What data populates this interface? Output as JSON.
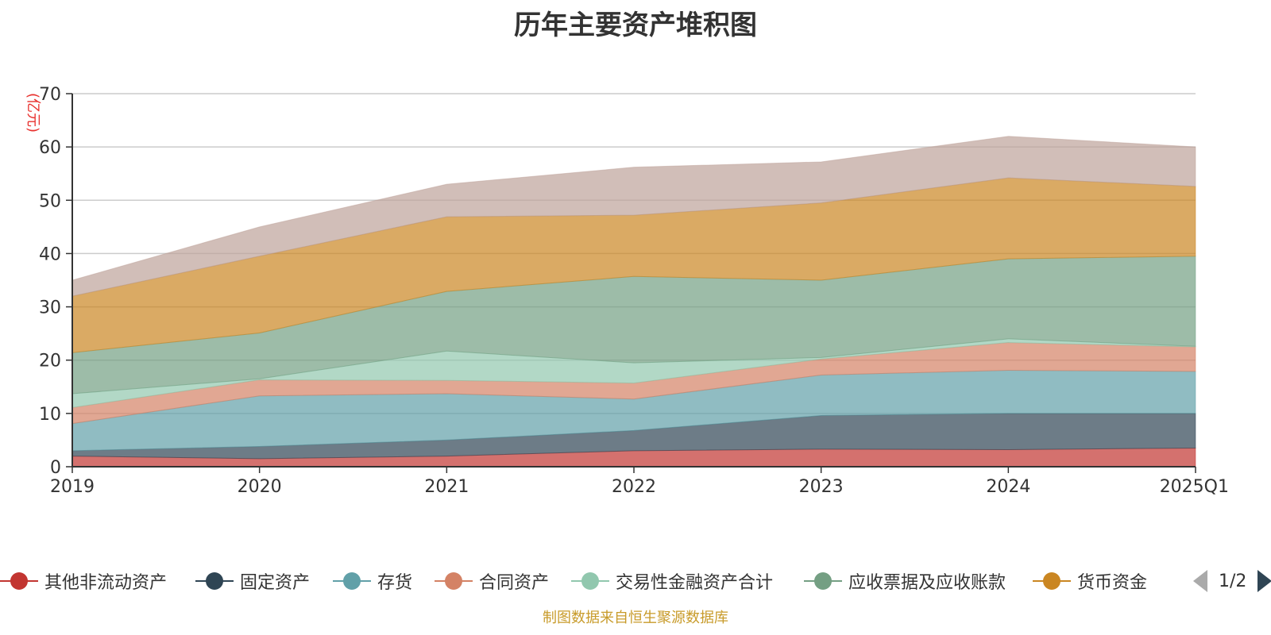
{
  "chart_data": {
    "type": "area",
    "stacked": true,
    "title": "历年主要资产堆积图",
    "ylabel": "(亿元)",
    "x": [
      "2019",
      "2020",
      "2021",
      "2022",
      "2023",
      "2024",
      "2025Q1"
    ],
    "ylim": [
      0,
      70
    ],
    "yticks": [
      0,
      10,
      20,
      30,
      40,
      50,
      60,
      70
    ],
    "grid": true,
    "legend_position": "bottom",
    "series": [
      {
        "name": "其他非流动资产",
        "color": "#c23531",
        "values": [
          2.0,
          1.5,
          2.0,
          3.0,
          3.3,
          3.2,
          3.5
        ]
      },
      {
        "name": "固定资产",
        "color": "#2f4554",
        "values": [
          1.0,
          2.3,
          3.0,
          3.8,
          6.3,
          6.8,
          6.5
        ]
      },
      {
        "name": "存货",
        "color": "#61a0a8",
        "values": [
          5.1,
          9.5,
          8.7,
          5.9,
          7.6,
          8.1,
          7.9
        ]
      },
      {
        "name": "合同资产",
        "color": "#d48265",
        "values": [
          3.0,
          3.0,
          2.5,
          3.0,
          3.0,
          5.2,
          4.6
        ]
      },
      {
        "name": "交易性金融资产合计",
        "color": "#91c7ae",
        "values": [
          2.6,
          0.2,
          5.5,
          3.8,
          0.3,
          0.7,
          0.1
        ]
      },
      {
        "name": "应收票据及应收账款",
        "color": "#749f83",
        "values": [
          7.7,
          8.6,
          11.2,
          16.2,
          14.5,
          15.0,
          16.9
        ]
      },
      {
        "name": "货币资金",
        "color": "#ca8622",
        "values": [
          10.6,
          14.4,
          14.0,
          11.5,
          14.5,
          15.2,
          13.1
        ]
      },
      {
        "name": "",
        "color": "#bda29a",
        "values": [
          3.0,
          5.5,
          6.1,
          9.0,
          7.7,
          7.8,
          7.4
        ]
      }
    ]
  },
  "legend": {
    "page_label": "1/2"
  },
  "footer": {
    "source": "制图数据来自恒生聚源数据库"
  }
}
